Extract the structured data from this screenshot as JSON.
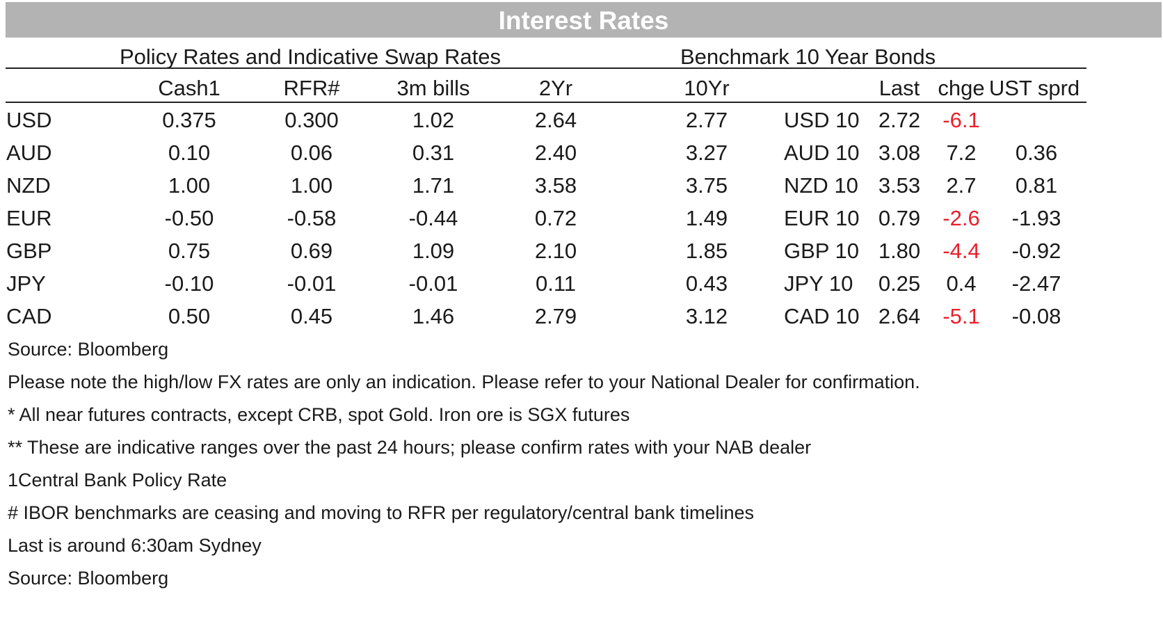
{
  "title": "Interest Rates",
  "sections": {
    "policy": "Policy Rates and Indicative Swap Rates",
    "bonds": "Benchmark 10 Year Bonds"
  },
  "policy_headers": [
    "Cash1",
    "RFR#",
    "3m bills",
    "2Yr",
    "10Yr"
  ],
  "bond_headers": [
    "Last",
    "chge",
    "UST sprd"
  ],
  "rows": [
    {
      "ccy": "USD",
      "cash": "0.375",
      "rfr": "0.300",
      "bills": "1.02",
      "y2": "2.64",
      "y10": "2.77",
      "bond": "USD 10",
      "last": "2.72",
      "chge": "-6.1",
      "chge_neg": true,
      "sprd": ""
    },
    {
      "ccy": "AUD",
      "cash": "0.10",
      "rfr": "0.06",
      "bills": "0.31",
      "y2": "2.40",
      "y10": "3.27",
      "bond": "AUD 10",
      "last": "3.08",
      "chge": "7.2",
      "chge_neg": false,
      "sprd": "0.36"
    },
    {
      "ccy": "NZD",
      "cash": "1.00",
      "rfr": "1.00",
      "bills": "1.71",
      "y2": "3.58",
      "y10": "3.75",
      "bond": "NZD 10",
      "last": "3.53",
      "chge": "2.7",
      "chge_neg": false,
      "sprd": "0.81"
    },
    {
      "ccy": "EUR",
      "cash": "-0.50",
      "rfr": "-0.58",
      "bills": "-0.44",
      "y2": "0.72",
      "y10": "1.49",
      "bond": "EUR 10",
      "last": "0.79",
      "chge": "-2.6",
      "chge_neg": true,
      "sprd": "-1.93"
    },
    {
      "ccy": "GBP",
      "cash": "0.75",
      "rfr": "0.69",
      "bills": "1.09",
      "y2": "2.10",
      "y10": "1.85",
      "bond": "GBP 10",
      "last": "1.80",
      "chge": "-4.4",
      "chge_neg": true,
      "sprd": "-0.92"
    },
    {
      "ccy": "JPY",
      "cash": "-0.10",
      "rfr": "-0.01",
      "bills": "-0.01",
      "y2": "0.11",
      "y10": "0.43",
      "bond": "JPY 10",
      "last": "0.25",
      "chge": "0.4",
      "chge_neg": false,
      "sprd": "-2.47"
    },
    {
      "ccy": "CAD",
      "cash": "0.50",
      "rfr": "0.45",
      "bills": "1.46",
      "y2": "2.79",
      "y10": "3.12",
      "bond": "CAD 10",
      "last": "2.64",
      "chge": "-5.1",
      "chge_neg": true,
      "sprd": "-0.08"
    }
  ],
  "notes": [
    "Source: Bloomberg",
    "Please note the high/low FX rates are only an indication. Please refer to your National Dealer for confirmation.",
    "* All near futures contracts, except CRB, spot Gold.  Iron ore is SGX futures",
    "** These are indicative ranges over the past 24 hours; please confirm rates with your NAB dealer",
    "1Central Bank Policy Rate",
    "# IBOR benchmarks are ceasing and moving to RFR per regulatory/central bank timelines",
    "Last is around 6:30am Sydney",
    "Source: Bloomberg"
  ],
  "colors": {
    "negative_change": "#e8202a",
    "banner": "#b3b3b3"
  }
}
